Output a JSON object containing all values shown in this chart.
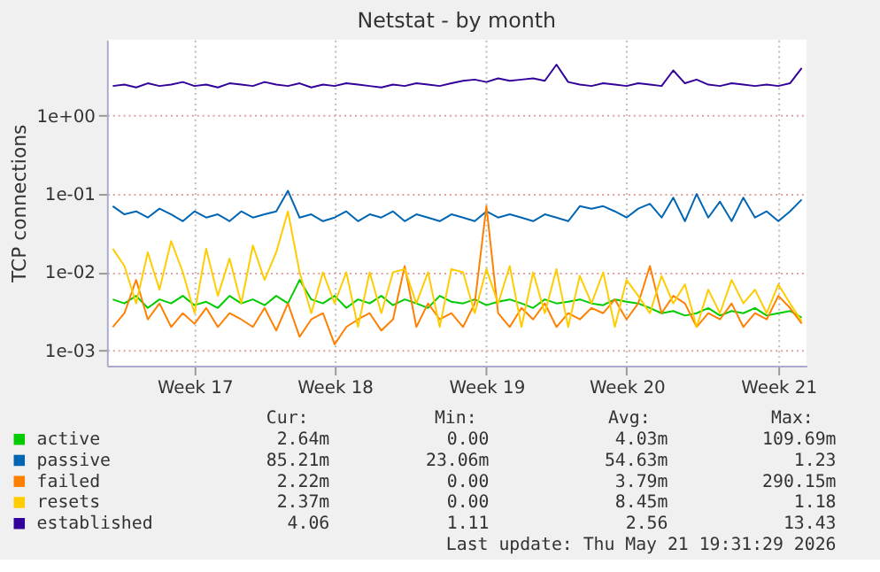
{
  "chart_data": {
    "type": "line",
    "title": "Netstat - by month",
    "ylabel": "TCP connections",
    "categories": [
      null,
      null,
      null,
      null,
      null,
      null,
      null,
      "Week 17",
      null,
      null,
      null,
      null,
      null,
      null,
      null,
      null,
      null,
      null,
      null,
      "Week 18",
      null,
      null,
      null,
      null,
      null,
      null,
      null,
      null,
      null,
      null,
      null,
      null,
      "Week 19",
      null,
      null,
      null,
      null,
      null,
      null,
      null,
      null,
      null,
      null,
      null,
      "Week 20",
      null,
      null,
      null,
      null,
      null,
      null,
      null,
      null,
      null,
      null,
      null,
      null,
      "Week 21",
      null,
      null
    ],
    "series": [
      {
        "name": "active",
        "color": "#00cc00",
        "values": [
          0.0045,
          0.004,
          0.005,
          0.0035,
          0.0045,
          0.004,
          0.005,
          0.0038,
          0.0042,
          0.0035,
          0.005,
          0.004,
          0.0045,
          0.0038,
          0.005,
          0.004,
          0.008,
          0.0045,
          0.004,
          0.005,
          0.0035,
          0.0045,
          0.004,
          0.005,
          0.0038,
          0.0045,
          0.004,
          0.0035,
          0.005,
          0.0042,
          0.004,
          0.0045,
          0.0038,
          0.0042,
          0.0045,
          0.004,
          0.0035,
          0.0045,
          0.004,
          0.0042,
          0.0045,
          0.004,
          0.0038,
          0.0045,
          0.0042,
          0.004,
          0.0035,
          0.003,
          0.0032,
          0.0028,
          0.003,
          0.0035,
          0.0028,
          0.0032,
          0.003,
          0.0035,
          0.0028,
          0.003,
          0.0032,
          0.00264
        ]
      },
      {
        "name": "passive",
        "color": "#0066b3",
        "values": [
          0.07,
          0.055,
          0.06,
          0.05,
          0.065,
          0.055,
          0.045,
          0.06,
          0.05,
          0.055,
          0.045,
          0.06,
          0.05,
          0.055,
          0.06,
          0.11,
          0.05,
          0.055,
          0.045,
          0.05,
          0.06,
          0.045,
          0.055,
          0.05,
          0.06,
          0.045,
          0.055,
          0.05,
          0.045,
          0.055,
          0.05,
          0.045,
          0.06,
          0.05,
          0.055,
          0.05,
          0.045,
          0.055,
          0.05,
          0.045,
          0.07,
          0.065,
          0.07,
          0.06,
          0.05,
          0.065,
          0.075,
          0.05,
          0.09,
          0.045,
          0.1,
          0.05,
          0.08,
          0.045,
          0.09,
          0.05,
          0.06,
          0.045,
          0.06,
          0.085
        ]
      },
      {
        "name": "failed",
        "color": "#ff8000",
        "values": [
          0.002,
          0.003,
          0.008,
          0.0025,
          0.004,
          0.002,
          0.003,
          0.0022,
          0.0035,
          0.002,
          0.003,
          0.0025,
          0.002,
          0.0035,
          0.0018,
          0.004,
          0.0015,
          0.0025,
          0.003,
          0.0012,
          0.002,
          0.0025,
          0.003,
          0.0018,
          0.0025,
          0.012,
          0.002,
          0.004,
          0.0025,
          0.003,
          0.002,
          0.004,
          0.07,
          0.003,
          0.002,
          0.0035,
          0.0025,
          0.004,
          0.002,
          0.003,
          0.0025,
          0.0035,
          0.003,
          0.0045,
          0.0025,
          0.004,
          0.012,
          0.003,
          0.005,
          0.004,
          0.002,
          0.003,
          0.0025,
          0.004,
          0.002,
          0.003,
          0.0025,
          0.005,
          0.0035,
          0.00222
        ]
      },
      {
        "name": "resets",
        "color": "#ffcc00",
        "values": [
          0.02,
          0.012,
          0.004,
          0.018,
          0.006,
          0.025,
          0.01,
          0.003,
          0.02,
          0.005,
          0.015,
          0.004,
          0.022,
          0.008,
          0.018,
          0.06,
          0.01,
          0.003,
          0.01,
          0.004,
          0.01,
          0.002,
          0.01,
          0.003,
          0.01,
          0.011,
          0.004,
          0.01,
          0.002,
          0.011,
          0.01,
          0.003,
          0.011,
          0.004,
          0.012,
          0.002,
          0.01,
          0.003,
          0.011,
          0.002,
          0.009,
          0.004,
          0.01,
          0.002,
          0.008,
          0.005,
          0.003,
          0.009,
          0.004,
          0.007,
          0.002,
          0.006,
          0.003,
          0.008,
          0.004,
          0.006,
          0.003,
          0.007,
          0.004,
          0.00237
        ]
      },
      {
        "name": "established",
        "color": "#330099",
        "values": [
          2.4,
          2.5,
          2.3,
          2.6,
          2.4,
          2.5,
          2.7,
          2.4,
          2.5,
          2.3,
          2.6,
          2.5,
          2.4,
          2.7,
          2.5,
          2.4,
          2.6,
          2.3,
          2.5,
          2.4,
          2.6,
          2.5,
          2.4,
          2.3,
          2.5,
          2.4,
          2.6,
          2.5,
          2.4,
          2.6,
          2.8,
          2.9,
          2.7,
          3.0,
          2.8,
          2.9,
          3.0,
          2.8,
          4.5,
          2.7,
          2.5,
          2.4,
          2.6,
          2.5,
          2.4,
          2.6,
          2.5,
          2.4,
          3.8,
          2.6,
          2.9,
          2.5,
          2.4,
          2.6,
          2.5,
          2.4,
          2.5,
          2.4,
          2.6,
          4.06
        ]
      }
    ],
    "ylim": [
      0.00064,
      9.4
    ],
    "yticks": [
      {
        "value": 0.001,
        "label": "1e-03"
      },
      {
        "value": 0.01,
        "label": "1e-02"
      },
      {
        "value": 0.1,
        "label": "1e-01"
      },
      {
        "value": 1,
        "label": "1e+00"
      }
    ],
    "log": "y",
    "grid": true,
    "legend": "bottom",
    "annotations": [
      "Cur:",
      "Min:",
      "Avg:",
      "Max:",
      "2.64m",
      "0.00",
      "4.03m",
      "109.69m",
      "85.21m",
      "23.06m",
      "54.63m",
      "1.23",
      "2.22m",
      "0.00",
      "3.79m",
      "290.15m",
      "2.37m",
      "0.00",
      "8.45m",
      "1.18",
      "4.06",
      "1.11",
      "2.56",
      "13.43",
      "Last update: Thu May 21 19:31:29 2026"
    ]
  }
}
